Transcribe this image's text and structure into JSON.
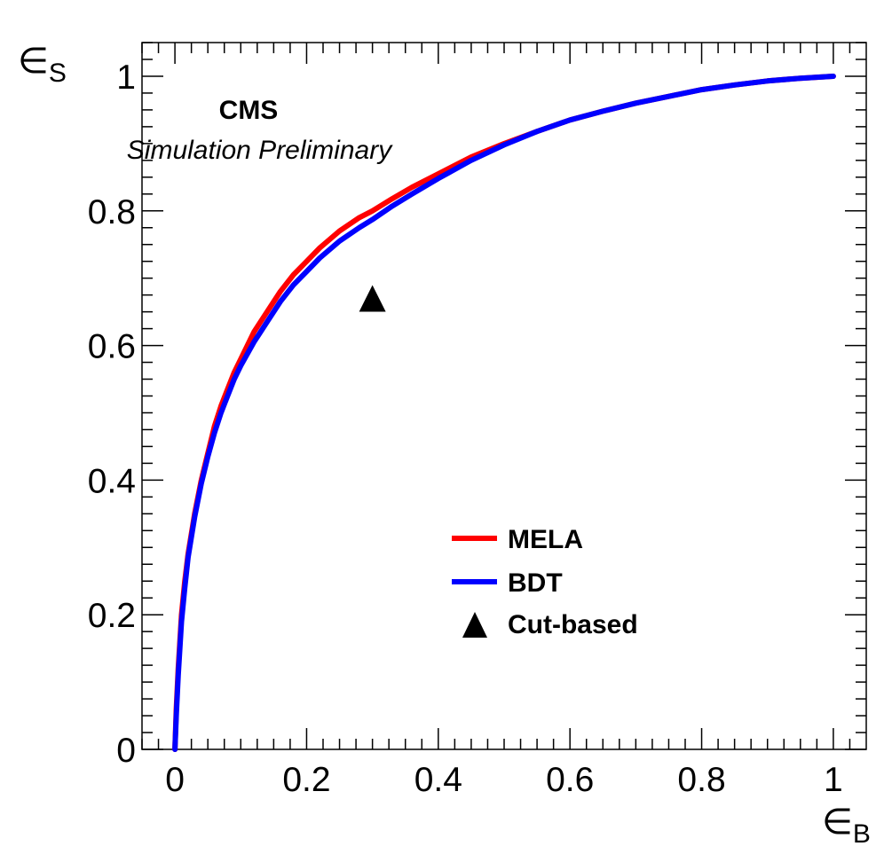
{
  "chart_data": {
    "type": "line",
    "title": "",
    "xlabel": "∈B",
    "ylabel": "∈S",
    "xlim": [
      -0.05,
      1.05
    ],
    "ylim": [
      0,
      1.05
    ],
    "grid": false,
    "legend_position": "bottom-right",
    "x_ticks": [
      "0",
      "0.2",
      "0.4",
      "0.6",
      "0.8",
      "1"
    ],
    "y_ticks": [
      "0",
      "0.2",
      "0.4",
      "0.6",
      "0.8",
      "1"
    ],
    "annotations": {
      "experiment": "CMS",
      "status": "Simulation Preliminary"
    },
    "series": [
      {
        "name": "MELA",
        "color": "#ff0000",
        "x": [
          0.0,
          0.002,
          0.005,
          0.01,
          0.015,
          0.02,
          0.03,
          0.04,
          0.05,
          0.06,
          0.07,
          0.08,
          0.09,
          0.1,
          0.12,
          0.14,
          0.16,
          0.18,
          0.2,
          0.22,
          0.25,
          0.28,
          0.3,
          0.33,
          0.36,
          0.4,
          0.45,
          0.5,
          0.55,
          0.6,
          0.65,
          0.7,
          0.75,
          0.8,
          0.85,
          0.9,
          0.95,
          1.0
        ],
        "y": [
          0.0,
          0.06,
          0.12,
          0.2,
          0.25,
          0.29,
          0.35,
          0.4,
          0.44,
          0.48,
          0.51,
          0.535,
          0.56,
          0.58,
          0.62,
          0.65,
          0.68,
          0.705,
          0.725,
          0.745,
          0.77,
          0.79,
          0.8,
          0.818,
          0.835,
          0.855,
          0.88,
          0.9,
          0.918,
          0.935,
          0.948,
          0.96,
          0.97,
          0.98,
          0.987,
          0.993,
          0.997,
          1.0
        ]
      },
      {
        "name": "BDT",
        "color": "#0000ff",
        "x": [
          0.0,
          0.002,
          0.005,
          0.01,
          0.015,
          0.02,
          0.03,
          0.04,
          0.05,
          0.06,
          0.07,
          0.08,
          0.09,
          0.1,
          0.12,
          0.14,
          0.16,
          0.18,
          0.2,
          0.22,
          0.25,
          0.28,
          0.3,
          0.33,
          0.36,
          0.4,
          0.45,
          0.5,
          0.55,
          0.6,
          0.65,
          0.7,
          0.75,
          0.8,
          0.85,
          0.9,
          0.95,
          1.0
        ],
        "y": [
          0.0,
          0.05,
          0.11,
          0.19,
          0.24,
          0.285,
          0.345,
          0.395,
          0.435,
          0.47,
          0.5,
          0.525,
          0.55,
          0.57,
          0.605,
          0.635,
          0.665,
          0.69,
          0.71,
          0.73,
          0.755,
          0.775,
          0.787,
          0.807,
          0.825,
          0.848,
          0.875,
          0.898,
          0.918,
          0.935,
          0.948,
          0.96,
          0.97,
          0.98,
          0.987,
          0.993,
          0.997,
          1.0
        ]
      },
      {
        "name": "Cut-based",
        "color": "#000000",
        "marker": "triangle",
        "x": [
          0.3
        ],
        "y": [
          0.67
        ]
      }
    ]
  }
}
